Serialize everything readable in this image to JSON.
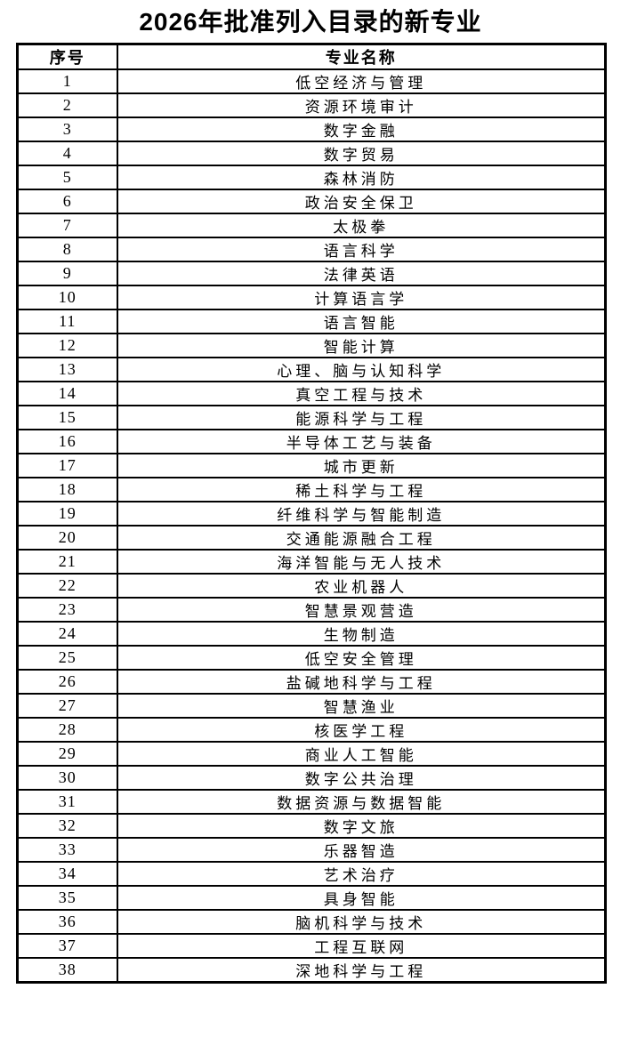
{
  "title": "2026年批准列入目录的新专业",
  "table": {
    "headers": [
      "序号",
      "专业名称"
    ],
    "rows": [
      {
        "index": "1",
        "name": "低空经济与管理"
      },
      {
        "index": "2",
        "name": "资源环境审计"
      },
      {
        "index": "3",
        "name": "数字金融"
      },
      {
        "index": "4",
        "name": "数字贸易"
      },
      {
        "index": "5",
        "name": "森林消防"
      },
      {
        "index": "6",
        "name": "政治安全保卫"
      },
      {
        "index": "7",
        "name": "太极拳"
      },
      {
        "index": "8",
        "name": "语言科学"
      },
      {
        "index": "9",
        "name": "法律英语"
      },
      {
        "index": "10",
        "name": "计算语言学"
      },
      {
        "index": "11",
        "name": "语言智能"
      },
      {
        "index": "12",
        "name": "智能计算"
      },
      {
        "index": "13",
        "name": "心理、脑与认知科学"
      },
      {
        "index": "14",
        "name": "真空工程与技术"
      },
      {
        "index": "15",
        "name": "能源科学与工程"
      },
      {
        "index": "16",
        "name": "半导体工艺与装备"
      },
      {
        "index": "17",
        "name": "城市更新"
      },
      {
        "index": "18",
        "name": "稀土科学与工程"
      },
      {
        "index": "19",
        "name": "纤维科学与智能制造"
      },
      {
        "index": "20",
        "name": "交通能源融合工程"
      },
      {
        "index": "21",
        "name": "海洋智能与无人技术"
      },
      {
        "index": "22",
        "name": "农业机器人"
      },
      {
        "index": "23",
        "name": "智慧景观营造"
      },
      {
        "index": "24",
        "name": "生物制造"
      },
      {
        "index": "25",
        "name": "低空安全管理"
      },
      {
        "index": "26",
        "name": "盐碱地科学与工程"
      },
      {
        "index": "27",
        "name": "智慧渔业"
      },
      {
        "index": "28",
        "name": "核医学工程"
      },
      {
        "index": "29",
        "name": "商业人工智能"
      },
      {
        "index": "30",
        "name": "数字公共治理"
      },
      {
        "index": "31",
        "name": "数据资源与数据智能"
      },
      {
        "index": "32",
        "name": "数字文旅"
      },
      {
        "index": "33",
        "name": "乐器智造"
      },
      {
        "index": "34",
        "name": "艺术治疗"
      },
      {
        "index": "35",
        "name": "具身智能"
      },
      {
        "index": "36",
        "name": "脑机科学与技术"
      },
      {
        "index": "37",
        "name": "工程互联网"
      },
      {
        "index": "38",
        "name": "深地科学与工程"
      }
    ]
  },
  "colors": {
    "text": "#000000",
    "border": "#000000",
    "background": "#ffffff"
  }
}
